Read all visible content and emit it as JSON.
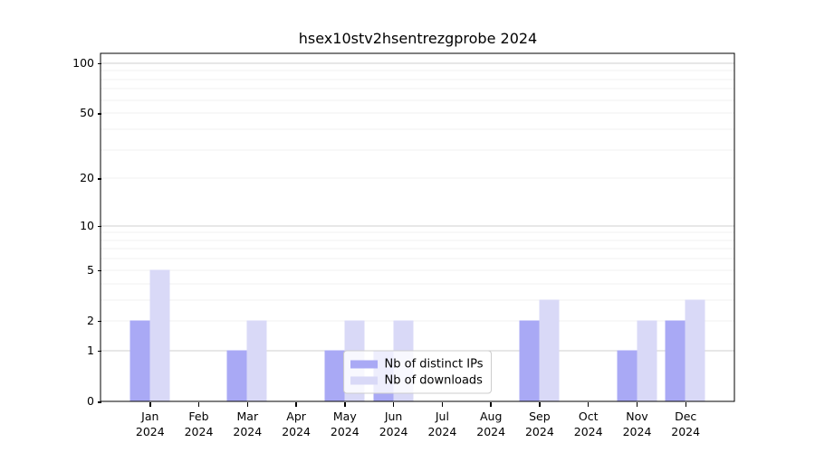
{
  "chart_data": {
    "type": "bar",
    "title": "hsex10stv2hsentrezgprobe 2024",
    "categories": [
      "Jan",
      "Feb",
      "Mar",
      "Apr",
      "May",
      "Jun",
      "Jul",
      "Aug",
      "Sep",
      "Oct",
      "Nov",
      "Dec"
    ],
    "xtick_year": "2024",
    "series": [
      {
        "name": "Nb of distinct IPs",
        "color": "#a9a9f5",
        "values": [
          2,
          0,
          1,
          0,
          1,
          1,
          0,
          0,
          2,
          0,
          1,
          2
        ]
      },
      {
        "name": "Nb of downloads",
        "color": "#d9d9f7",
        "values": [
          5,
          0,
          2,
          0,
          2,
          2,
          0,
          0,
          3,
          0,
          2,
          3
        ]
      }
    ],
    "yscale": "log1p",
    "ylim": [
      0,
      113
    ],
    "yticks": [
      100,
      50,
      20,
      10,
      5,
      2,
      1,
      0
    ],
    "major_gridlines": [
      1,
      10,
      100
    ],
    "minor_gridlines": [
      2,
      3,
      4,
      5,
      6,
      7,
      8,
      9,
      20,
      30,
      40,
      50,
      60,
      70,
      80,
      90
    ],
    "grid": true,
    "legend_position": "lower center",
    "colors": {
      "axis": "#000000",
      "major_grid": "#cfcfcf",
      "minor_grid": "#f0f0f0",
      "legend_border": "#cccccc",
      "background": "#ffffff"
    }
  }
}
